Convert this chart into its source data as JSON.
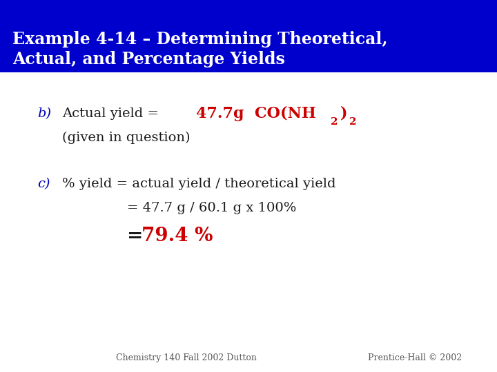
{
  "title_line1": "Example 4-14 – Determining Theoretical,",
  "title_line2": "Actual, and Percentage Yields",
  "title_bg_color": "#0000CC",
  "title_text_color": "#FFFFFF",
  "bg_color": "#FFFFFF",
  "blue_label_color": "#0000BB",
  "red_value_color": "#CC0000",
  "black_text_color": "#1a1a1a",
  "gray_text_color": "#555555",
  "footer_left": "Chemistry 140 Fall 2002 Dutton",
  "footer_right": "Prentice-Hall © 2002",
  "b_label": "b)",
  "b_black": "Actual yield = ",
  "b_red_main": "47.7g  CO(NH",
  "b_subscript1": "2",
  "b_close_paren": ")",
  "b_subscript2": "2",
  "b_given": "(given in question)",
  "c_label": "c)",
  "c_line1": "% yield = actual yield / theoretical yield",
  "c_line2": "= 47.7 g / 60.1 g x 100%",
  "c_eq": "= 79.4 %",
  "title_fs": 17,
  "body_fs": 14,
  "red_main_fs": 16,
  "sub_fs": 11,
  "result_fs": 20,
  "footer_fs": 9
}
